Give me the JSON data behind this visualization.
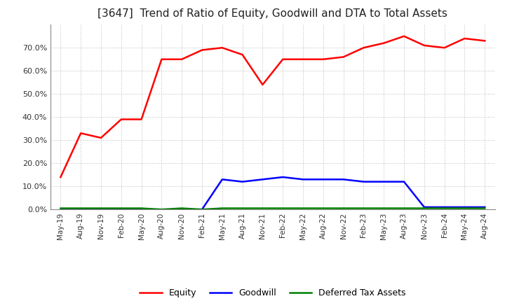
{
  "title": "[3647]  Trend of Ratio of Equity, Goodwill and DTA to Total Assets",
  "title_fontsize": 11,
  "background_color": "#ffffff",
  "plot_bg_color": "#ffffff",
  "grid_color": "#aaaaaa",
  "equity_color": "#ff0000",
  "goodwill_color": "#0000ff",
  "dta_color": "#008000",
  "x_labels": [
    "May-19",
    "Aug-19",
    "Nov-19",
    "Feb-20",
    "May-20",
    "Aug-20",
    "Nov-20",
    "Feb-21",
    "May-21",
    "Aug-21",
    "Nov-21",
    "Feb-22",
    "May-22",
    "Aug-22",
    "Nov-22",
    "Feb-23",
    "May-23",
    "Aug-23",
    "Nov-23",
    "Feb-24",
    "May-24",
    "Aug-24"
  ],
  "equity_values": [
    0.14,
    0.33,
    0.31,
    0.39,
    0.39,
    0.65,
    0.65,
    0.69,
    0.7,
    0.67,
    0.54,
    0.65,
    0.65,
    0.65,
    0.66,
    0.7,
    0.72,
    0.75,
    0.71,
    0.7,
    0.74,
    0.73
  ],
  "goodwill_values": [
    0.0,
    0.0,
    0.0,
    0.0,
    0.0,
    0.0,
    0.0,
    0.0,
    0.13,
    0.12,
    0.13,
    0.14,
    0.13,
    0.13,
    0.13,
    0.12,
    0.12,
    0.12,
    0.01,
    0.01,
    0.01,
    0.01
  ],
  "dta_values": [
    0.005,
    0.005,
    0.005,
    0.005,
    0.005,
    0.0,
    0.005,
    0.0,
    0.005,
    0.005,
    0.005,
    0.005,
    0.005,
    0.005,
    0.005,
    0.005,
    0.005,
    0.005,
    0.005,
    0.005,
    0.005,
    0.005
  ],
  "ylim": [
    0.0,
    0.8
  ],
  "yticks": [
    0.0,
    0.1,
    0.2,
    0.3,
    0.4,
    0.5,
    0.6,
    0.7
  ],
  "legend_labels": [
    "Equity",
    "Goodwill",
    "Deferred Tax Assets"
  ],
  "line_width": 1.8
}
